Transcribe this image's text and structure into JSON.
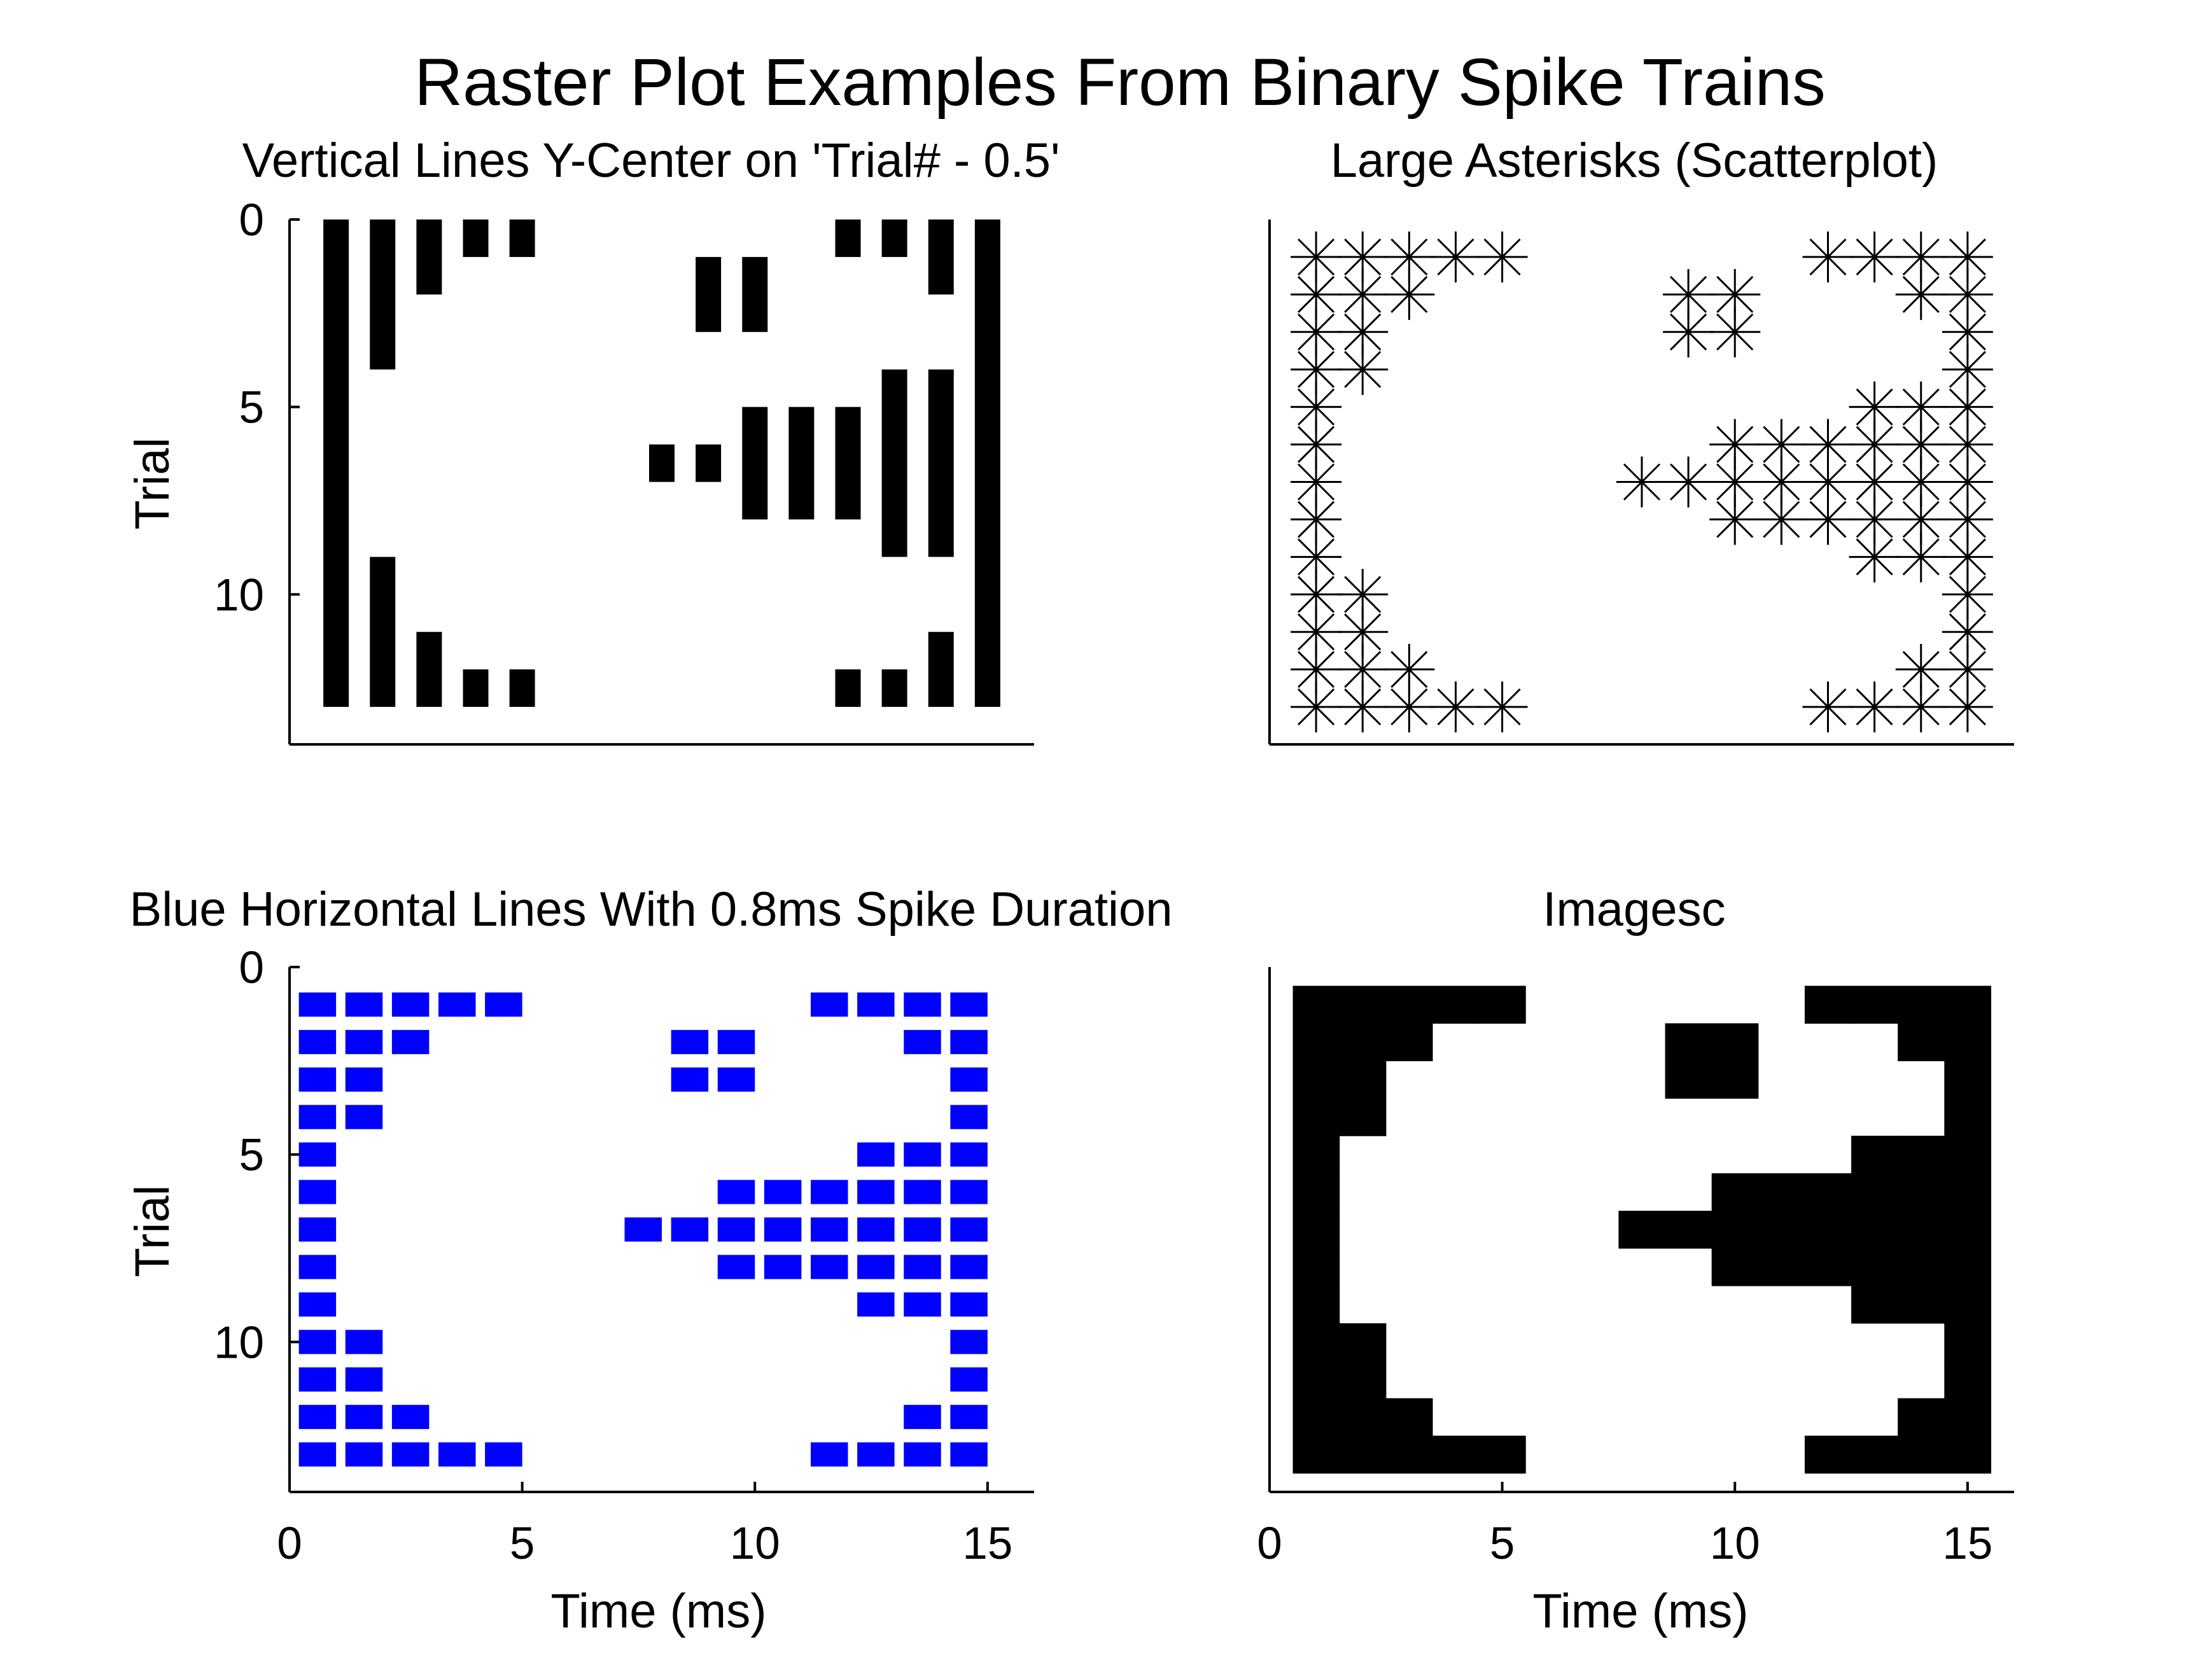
{
  "figure": {
    "title": "Raster Plot Examples From Binary Spike Trains"
  },
  "raster": {
    "trials": 13,
    "time_bins_ms": [
      1,
      2,
      3,
      4,
      5,
      6,
      7,
      8,
      9,
      10,
      11,
      12,
      13,
      14,
      15
    ],
    "spikes": [
      "111110000001111",
      "111000001100011",
      "110000001100001",
      "110000000000001",
      "100000000000111",
      "100000000111111",
      "100000011111111",
      "100000000111111",
      "100000000000111",
      "110000000000001",
      "110000000000001",
      "111000000000011",
      "111110000001111"
    ]
  },
  "chart_data": [
    {
      "type": "bar",
      "title": "Vertical Lines Y-Center on 'Trial# - 0.5'",
      "xlabel": "",
      "ylabel": "Trial",
      "xlim": [
        0,
        16
      ],
      "ylim": [
        0,
        14
      ],
      "y_reversed": true,
      "xticks": [],
      "yticks": [
        "0",
        "5",
        "10"
      ],
      "color": "#000000",
      "encoding": "vertical line per spike at time t spanning trial-1 to trial"
    },
    {
      "type": "scatter",
      "title": "Large Asterisks (Scatterplot)",
      "xlabel": "",
      "ylabel": "",
      "xlim": [
        0,
        16
      ],
      "ylim": [
        0,
        14
      ],
      "y_reversed": true,
      "xticks": [],
      "yticks": [],
      "color": "#000000",
      "marker": "asterisk",
      "encoding": "asterisk marker at (time, trial) per spike"
    },
    {
      "type": "bar",
      "title": "Blue Horizontal Lines With 0.8ms Spike Duration",
      "xlabel": "Time (ms)",
      "ylabel": "Trial",
      "xlim": [
        0,
        16
      ],
      "ylim": [
        0,
        14
      ],
      "y_reversed": true,
      "xticks": [
        "0",
        "5",
        "10",
        "15"
      ],
      "yticks": [
        "0",
        "5",
        "10"
      ],
      "color": "#0000ff",
      "spike_duration_ms": 0.8,
      "encoding": "horizontal line from time-0.8 to time at trial per spike"
    },
    {
      "type": "heatmap",
      "title": "Imagesc",
      "xlabel": "Time (ms)",
      "ylabel": "",
      "xlim": [
        0,
        16
      ],
      "ylim": [
        0,
        14
      ],
      "y_reversed": true,
      "xticks": [
        "0",
        "5",
        "10",
        "15"
      ],
      "yticks": [],
      "colormap": [
        "#ffffff",
        "#000000"
      ],
      "encoding": "image of the binary spike matrix"
    }
  ]
}
